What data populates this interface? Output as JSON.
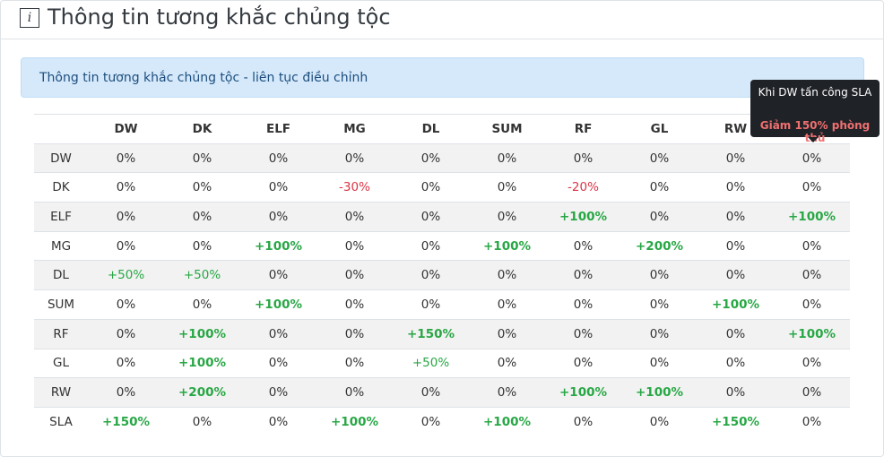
{
  "header": {
    "title": "Thông tin tương khắc chủng tộc"
  },
  "alert": {
    "text": "Thông tin tương khắc chủng tộc - liên tục điều chỉnh"
  },
  "table": {
    "columns": [
      "DW",
      "DK",
      "ELF",
      "MG",
      "DL",
      "SUM",
      "RF",
      "GL",
      "RW",
      null
    ],
    "rows": [
      {
        "label": "DW",
        "cells": [
          "0%",
          "0%",
          "0%",
          "0%",
          "0%",
          "0%",
          "0%",
          "0%",
          "0%",
          "0%"
        ]
      },
      {
        "label": "DK",
        "cells": [
          "0%",
          "0%",
          "0%",
          "-30%",
          "0%",
          "0%",
          "-20%",
          "0%",
          "0%",
          "0%"
        ]
      },
      {
        "label": "ELF",
        "cells": [
          "0%",
          "0%",
          "0%",
          "0%",
          "0%",
          "0%",
          "+100%",
          "0%",
          "0%",
          "+100%"
        ]
      },
      {
        "label": "MG",
        "cells": [
          "0%",
          "0%",
          "+100%",
          "0%",
          "0%",
          "+100%",
          "0%",
          "+200%",
          "0%",
          "0%"
        ]
      },
      {
        "label": "DL",
        "cells": [
          "+50%",
          "+50%",
          "0%",
          "0%",
          "0%",
          "0%",
          "0%",
          "0%",
          "0%",
          "0%"
        ]
      },
      {
        "label": "SUM",
        "cells": [
          "0%",
          "0%",
          "+100%",
          "0%",
          "0%",
          "0%",
          "0%",
          "0%",
          "+100%",
          "0%"
        ]
      },
      {
        "label": "RF",
        "cells": [
          "0%",
          "+100%",
          "0%",
          "0%",
          "+150%",
          "0%",
          "0%",
          "0%",
          "0%",
          "+100%"
        ]
      },
      {
        "label": "GL",
        "cells": [
          "0%",
          "+100%",
          "0%",
          "0%",
          "+50%",
          "0%",
          "0%",
          "0%",
          "0%",
          "0%"
        ]
      },
      {
        "label": "RW",
        "cells": [
          "0%",
          "+200%",
          "0%",
          "0%",
          "0%",
          "0%",
          "+100%",
          "+100%",
          "0%",
          "0%"
        ]
      },
      {
        "label": "SLA",
        "cells": [
          "+150%",
          "0%",
          "0%",
          "+100%",
          "0%",
          "+100%",
          "0%",
          "0%",
          "+150%",
          "0%"
        ]
      }
    ]
  },
  "tooltip": {
    "title": "Khi DW tấn công SLA",
    "text": "Giảm 150% phòng thủ"
  }
}
